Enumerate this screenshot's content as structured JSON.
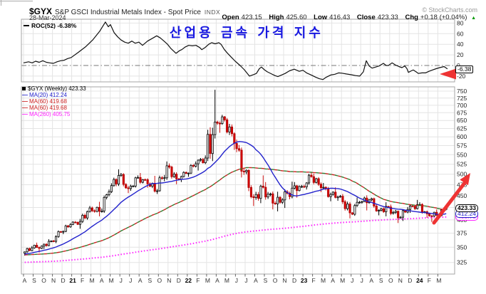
{
  "header": {
    "symbol": "$GYX",
    "title": "S&P GSCI Industrial Metals Index - Spot Price",
    "exchange": "INDX",
    "date": "28-Mar-2024",
    "copyright": "© StockCharts.com",
    "quote": {
      "open_label": "Open",
      "open": "423.15",
      "high_label": "High",
      "high": "425.60",
      "low_label": "Low",
      "low": "416.43",
      "close_label": "Close",
      "close": "423.33",
      "chg_label": "Chg",
      "chg": "+0.18 (+0.04%)",
      "direction_icon": "▲",
      "direction_color": "#009900"
    }
  },
  "annotation_title": {
    "text": "산업용 금속 가격 지수",
    "color": "#1818e0"
  },
  "colors": {
    "grid": "#e4e4e4",
    "panel_border": "#a6a6a6",
    "axis_text": "#222222",
    "candle_up_fill": "#ffffff",
    "candle_down_fill": "#dd0000",
    "candle_outline": "#000000",
    "candle_down_outline": "#aa0000",
    "ma20": "#2222cc",
    "ma60": "#cc2222",
    "ma60_alt": "#2e7d2e",
    "ma260": "#ff22ff",
    "roc_line": "#111111",
    "zero_line": "#777777",
    "arrow": "#ee3333"
  },
  "chart_data": [
    {
      "type": "line",
      "panel": "roc",
      "title": "ROC(52) -6.38%",
      "indicator": "Rate of Change (52 weeks)",
      "current_value": -6.38,
      "end_label": "-6.38",
      "yticks": [
        80,
        60,
        40,
        20,
        0,
        -20
      ],
      "ylim": [
        -32,
        92
      ],
      "zero_line": true,
      "points": [
        [
          0,
          5
        ],
        [
          2.1,
          7
        ],
        [
          3.6,
          5
        ],
        [
          5,
          8
        ],
        [
          6.5,
          6
        ],
        [
          8,
          9
        ],
        [
          9.5,
          6
        ],
        [
          10.9,
          5
        ],
        [
          12.4,
          4
        ],
        [
          13.9,
          7
        ],
        [
          15.4,
          9
        ],
        [
          16.9,
          10
        ],
        [
          18.3,
          13
        ],
        [
          19.8,
          15
        ],
        [
          22.8,
          25
        ],
        [
          25.7,
          35
        ],
        [
          28.7,
          48
        ],
        [
          31.7,
          65
        ],
        [
          34,
          82
        ],
        [
          35.2,
          73
        ],
        [
          36.1,
          77
        ],
        [
          37.6,
          62
        ],
        [
          39.1,
          54
        ],
        [
          40.5,
          48
        ],
        [
          42,
          44
        ],
        [
          43.5,
          42
        ],
        [
          45,
          46
        ],
        [
          46.4,
          42
        ],
        [
          47.9,
          44
        ],
        [
          49.4,
          38
        ],
        [
          51.5,
          46
        ],
        [
          53.8,
          52
        ],
        [
          55.3,
          56
        ],
        [
          56.8,
          52
        ],
        [
          58.3,
          46
        ],
        [
          59.8,
          40
        ],
        [
          61.2,
          32
        ],
        [
          63.3,
          23
        ],
        [
          64.8,
          28
        ],
        [
          65.7,
          30
        ],
        [
          67.2,
          35
        ],
        [
          68.6,
          38
        ],
        [
          70.1,
          37
        ],
        [
          71.6,
          38
        ],
        [
          73.1,
          34
        ],
        [
          74,
          30
        ],
        [
          75.4,
          34
        ],
        [
          76.9,
          40
        ],
        [
          78.1,
          43
        ],
        [
          79.6,
          41
        ],
        [
          81.1,
          43
        ],
        [
          82,
          40
        ],
        [
          83.4,
          30
        ],
        [
          84.9,
          22
        ],
        [
          86.4,
          15
        ],
        [
          87.9,
          8
        ],
        [
          89.9,
          0
        ],
        [
          91.7,
          -8
        ],
        [
          93.8,
          -20
        ],
        [
          95.6,
          -17
        ],
        [
          96.7,
          -15
        ],
        [
          97.9,
          -6
        ],
        [
          98.8,
          -3
        ],
        [
          100,
          -8
        ],
        [
          101.2,
          -12
        ],
        [
          103,
          -16
        ],
        [
          104.4,
          -19
        ],
        [
          105.6,
          -21
        ],
        [
          107.1,
          -18
        ],
        [
          108.6,
          -15
        ],
        [
          110.4,
          -10
        ],
        [
          112.4,
          -7
        ],
        [
          114.5,
          -11
        ],
        [
          116,
          -9
        ],
        [
          117.5,
          -14
        ],
        [
          119.5,
          -18
        ],
        [
          121.3,
          -22
        ],
        [
          122.8,
          -25
        ],
        [
          124.3,
          -26.5
        ],
        [
          125.7,
          -22
        ],
        [
          127.5,
          -18
        ],
        [
          129.3,
          -16.5
        ],
        [
          130.8,
          -14
        ],
        [
          132.2,
          -14.5
        ],
        [
          134,
          -16
        ],
        [
          136.1,
          -17.5
        ],
        [
          137.9,
          -19
        ],
        [
          139.6,
          -20
        ],
        [
          141.1,
          -12
        ],
        [
          142.3,
          9
        ],
        [
          143.5,
          -1
        ],
        [
          144.7,
          -5
        ],
        [
          146.2,
          -3
        ],
        [
          147.6,
          -1
        ],
        [
          149.4,
          4
        ],
        [
          150.6,
          0
        ],
        [
          151.5,
          0
        ],
        [
          153,
          5
        ],
        [
          154.4,
          1
        ],
        [
          155.9,
          -2
        ],
        [
          157.1,
          -4
        ],
        [
          158.3,
          -1
        ],
        [
          159.2,
          -6
        ],
        [
          159.8,
          -13
        ],
        [
          161,
          -10
        ],
        [
          161.8,
          -8.5
        ],
        [
          163,
          -12
        ],
        [
          163.9,
          -15
        ],
        [
          165.4,
          -14
        ],
        [
          166.9,
          -14
        ],
        [
          168.3,
          -11
        ],
        [
          169.8,
          -8.5
        ],
        [
          171.3,
          -6
        ],
        [
          172.8,
          -4
        ],
        [
          174.6,
          -2
        ],
        [
          176,
          -6.38
        ]
      ]
    },
    {
      "type": "candlestick",
      "panel": "main",
      "legend_title": "$GYX (Weekly) 423.33",
      "timeframe": "weekly",
      "log_scale": true,
      "yticks": [
        750,
        725,
        700,
        675,
        650,
        625,
        600,
        575,
        550,
        525,
        500,
        475,
        450,
        425,
        400,
        375,
        350,
        325
      ],
      "months": [
        "A",
        "S",
        "O",
        "N",
        "D",
        "21",
        "F",
        "M",
        "A",
        "M",
        "J",
        "J",
        "A",
        "S",
        "O",
        "N",
        "D",
        "22",
        "F",
        "M",
        "A",
        "M",
        "J",
        "J",
        "A",
        "S",
        "O",
        "N",
        "D",
        "23",
        "F",
        "M",
        "A",
        "M",
        "J",
        "J",
        "A",
        "S",
        "O",
        "N",
        "D",
        "24",
        "F",
        "M"
      ],
      "monthly_ohlc": [
        [
          340,
          352,
          336,
          349
        ],
        [
          349,
          358,
          341,
          352
        ],
        [
          352,
          364,
          347,
          361
        ],
        [
          361,
          380,
          357,
          377
        ],
        [
          377,
          394,
          373,
          391
        ],
        [
          391,
          402,
          383,
          397
        ],
        [
          397,
          428,
          394,
          424
        ],
        [
          424,
          437,
          407,
          417
        ],
        [
          417,
          464,
          414,
          459
        ],
        [
          459,
          512,
          456,
          497
        ],
        [
          497,
          503,
          456,
          466
        ],
        [
          466,
          497,
          461,
          492
        ],
        [
          492,
          503,
          468,
          477
        ],
        [
          477,
          496,
          454,
          461
        ],
        [
          461,
          532,
          459,
          521
        ],
        [
          521,
          527,
          476,
          489
        ],
        [
          489,
          507,
          481,
          502
        ],
        [
          502,
          532,
          494,
          526
        ],
        [
          526,
          548,
          509,
          541
        ],
        [
          541,
          755,
          533,
          645
        ],
        [
          645,
          668,
          612,
          652
        ],
        [
          652,
          658,
          563,
          581
        ],
        [
          581,
          592,
          492,
          506
        ],
        [
          506,
          512,
          428,
          446
        ],
        [
          446,
          497,
          434,
          469
        ],
        [
          469,
          481,
          421,
          434
        ],
        [
          434,
          459,
          417,
          441
        ],
        [
          441,
          482,
          424,
          467
        ],
        [
          467,
          481,
          446,
          471
        ],
        [
          471,
          506,
          464,
          494
        ],
        [
          494,
          501,
          458,
          468
        ],
        [
          468,
          479,
          438,
          453
        ],
        [
          453,
          469,
          439,
          449
        ],
        [
          449,
          454,
          403,
          414
        ],
        [
          414,
          446,
          408,
          436
        ],
        [
          436,
          451,
          419,
          441
        ],
        [
          441,
          446,
          409,
          419
        ],
        [
          419,
          436,
          407,
          426
        ],
        [
          426,
          431,
          394,
          404
        ],
        [
          404,
          426,
          398,
          421
        ],
        [
          421,
          441,
          414,
          431
        ],
        [
          431,
          436,
          404,
          412
        ],
        [
          412,
          421,
          396,
          409
        ],
        [
          409,
          426,
          404,
          423.33
        ]
      ],
      "overlays": [
        {
          "label": "MA(20) 412.24",
          "period": 20,
          "end_value": 412.24,
          "color": "#2222cc",
          "style": "solid"
        },
        {
          "label": "MA(60) 419.68",
          "period": 60,
          "end_value": 419.68,
          "color": "#cc2222",
          "style": "dashed"
        },
        {
          "label": "MA(60) 419.68",
          "period": 60,
          "end_value": 419.68,
          "color": "#cc2222",
          "style": "dashed"
        },
        {
          "label": "MA(260) 405.75",
          "period": 260,
          "end_value": 405.75,
          "color": "#ff22ff",
          "style": "dotted"
        }
      ],
      "price_tags": [
        {
          "text": "423.33",
          "value": 423.33,
          "color": "#000000",
          "bold": true
        },
        {
          "text": "412.24",
          "value": 412.24,
          "color": "#2222cc",
          "bold": false
        },
        {
          "text": "405.75",
          "value": 405.75,
          "color": "#ff22ff",
          "bold": false
        }
      ],
      "arrow_annotation": {
        "description": "red up-right arrow at latest candles",
        "color": "#ee3333"
      },
      "roc_arrow_annotation": {
        "description": "red left-pointing arrowhead at ROC end",
        "color": "#ee3333"
      }
    }
  ]
}
